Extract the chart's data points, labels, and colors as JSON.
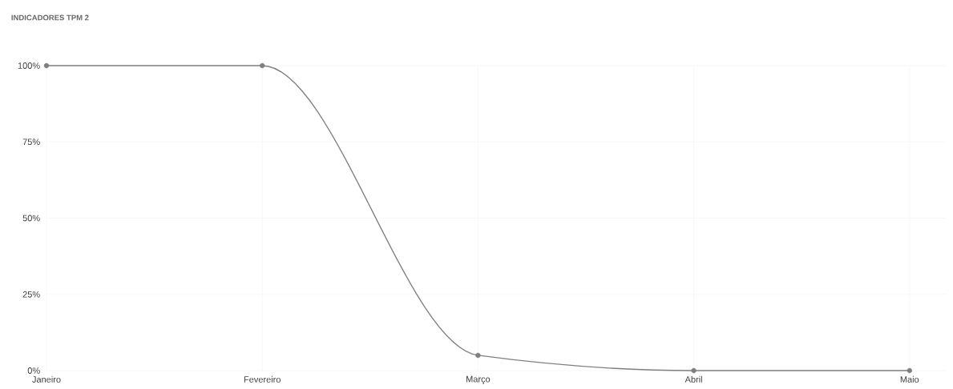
{
  "chart_data": {
    "type": "line",
    "title": "INDICADORES TPM 2",
    "categories": [
      "Janeiro",
      "Fevereiro",
      "Março",
      "Abril",
      "Maio"
    ],
    "series": [
      {
        "color": "#7f7f7f",
        "values": [
          100,
          100,
          5,
          0,
          0
        ]
      }
    ],
    "ylim": [
      0,
      100
    ],
    "yticks": [
      {
        "value": 0,
        "label": "0%"
      },
      {
        "value": 25,
        "label": "25%"
      },
      {
        "value": 50,
        "label": "50%"
      },
      {
        "value": 75,
        "label": "75%"
      },
      {
        "value": 100,
        "label": "100%"
      }
    ],
    "grid": true,
    "marker": "circle",
    "line_style": "solid"
  }
}
